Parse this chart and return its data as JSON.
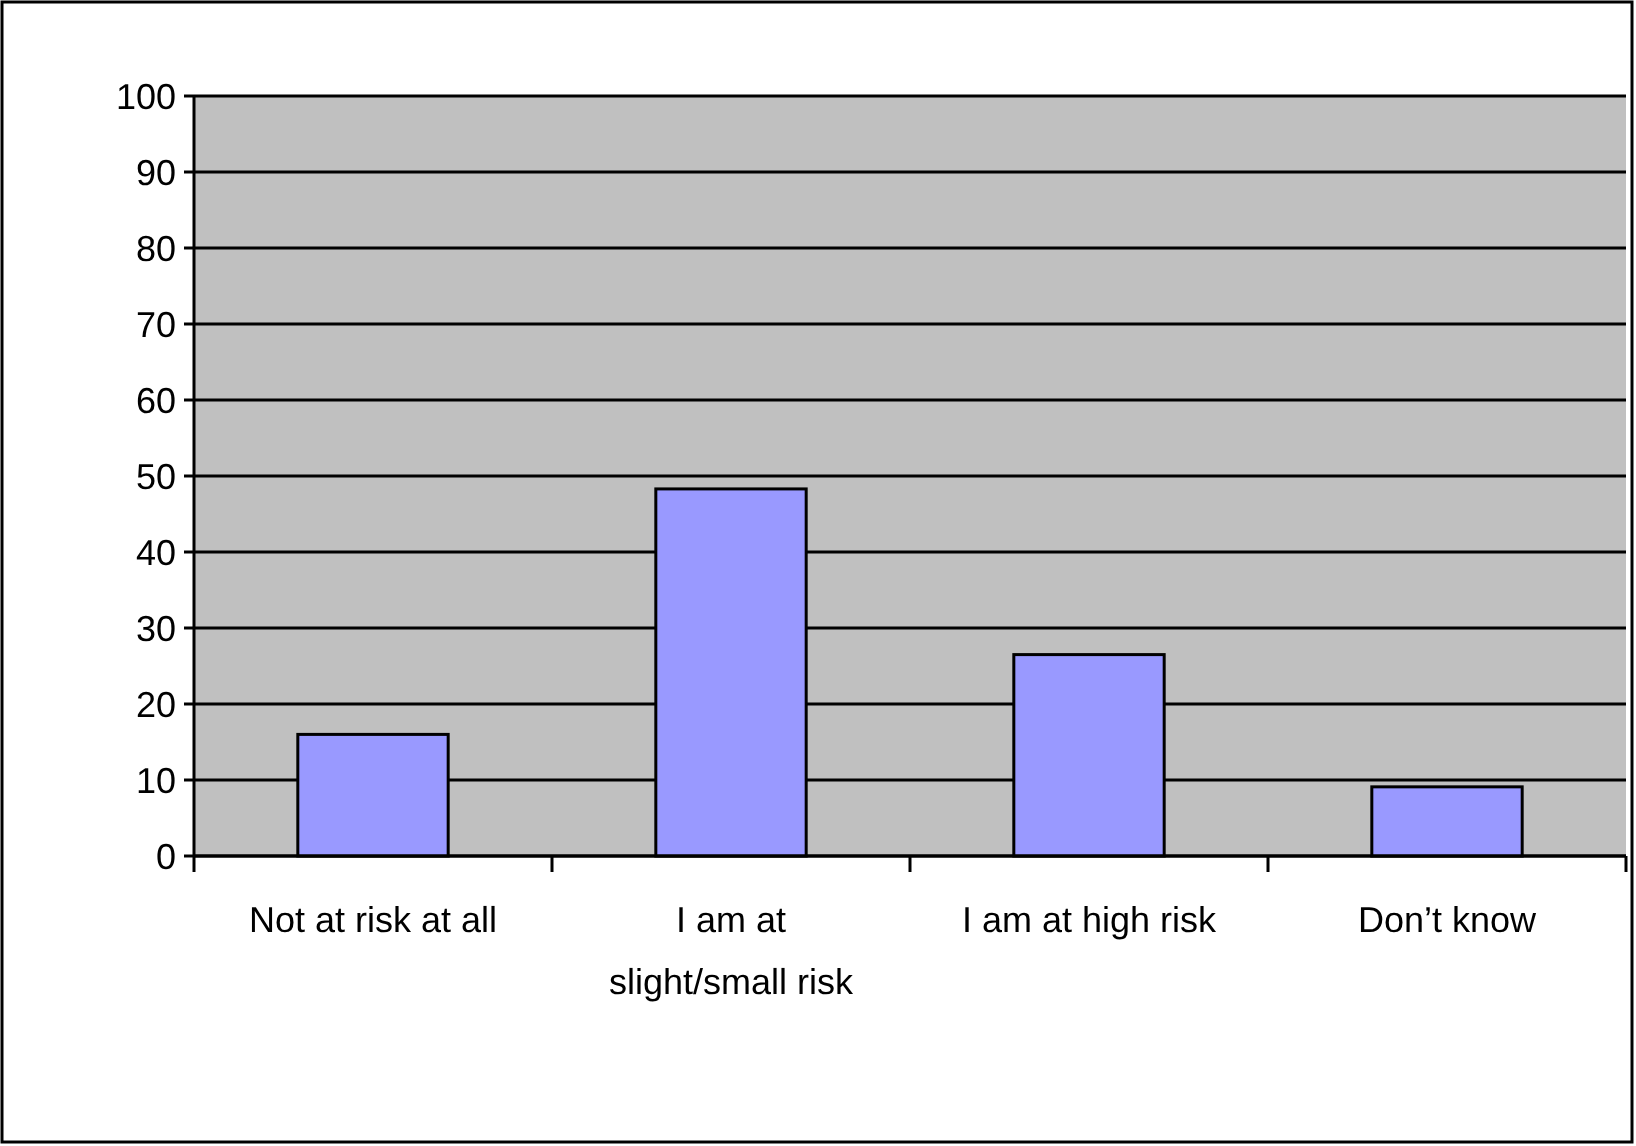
{
  "chart_data": {
    "type": "bar",
    "categories": [
      "Not at risk at all",
      "I am at slight/small risk",
      "I am at high risk",
      "Don’t know"
    ],
    "values": [
      16,
      48.3,
      26.5,
      9.1
    ],
    "color": "#9999ff",
    "ylim": [
      0,
      100
    ],
    "yticks": [
      0,
      10,
      20,
      30,
      40,
      50,
      60,
      70,
      80,
      90,
      100
    ],
    "grid": "y"
  }
}
